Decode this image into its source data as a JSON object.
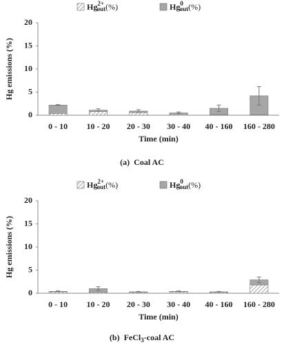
{
  "chart_data": [
    {
      "type": "stacked_bar",
      "y_label": "Hg emissions (%)",
      "x_label": "Time (min)",
      "caption": [
        {
          "text": "(a)"
        },
        {
          "text": "Coal AC"
        }
      ],
      "categories": [
        "0 - 10",
        "10 - 20",
        "20 - 30",
        "30 - 40",
        "40 - 160",
        "160 - 280"
      ],
      "series": [
        {
          "name": "Hg",
          "superscript": "2+",
          "subscript": "out",
          "suffix": "(%)",
          "color": "#ffffff",
          "hatch": "#888888",
          "values": [
            0.4,
            0.8,
            0.6,
            0.2,
            0.1,
            0.1
          ]
        },
        {
          "name": "Hg",
          "superscript": "0",
          "subscript": "out",
          "suffix": "(%)",
          "color": "#a6a6a6",
          "values": [
            1.8,
            0.3,
            0.3,
            0.3,
            1.4,
            4.1
          ],
          "errors": [
            0.1,
            0.3,
            0.3,
            0.2,
            0.7,
            2.0
          ]
        }
      ],
      "ylim": [
        0,
        20
      ],
      "yticks": [
        0,
        5,
        10,
        15,
        20
      ]
    },
    {
      "type": "stacked_bar",
      "y_label": "Hg emissions (%)",
      "x_label": "Time (min)",
      "caption": [
        {
          "text": "(b)"
        },
        {
          "text": "FeCl"
        },
        {
          "text": "3",
          "sub": true
        },
        {
          "text": "-coal AC"
        }
      ],
      "categories": [
        "0 - 10",
        "10 - 20",
        "20 - 30",
        "30 - 40",
        "40 - 160",
        "160 - 280"
      ],
      "series": [
        {
          "name": "Hg",
          "superscript": "2+",
          "subscript": "out",
          "suffix": "(%)",
          "color": "#ffffff",
          "hatch": "#888888",
          "values": [
            0.3,
            0.2,
            0.2,
            0.3,
            0.2,
            1.8
          ]
        },
        {
          "name": "Hg",
          "superscript": "0",
          "subscript": "out",
          "suffix": "(%)",
          "color": "#a6a6a6",
          "values": [
            0.1,
            0.8,
            0.1,
            0.1,
            0.1,
            1.1
          ],
          "errors": [
            0.1,
            0.4,
            0.1,
            0.1,
            0.1,
            0.6
          ]
        }
      ],
      "ylim": [
        0,
        20
      ],
      "yticks": [
        0,
        5,
        10,
        15,
        20
      ]
    }
  ]
}
